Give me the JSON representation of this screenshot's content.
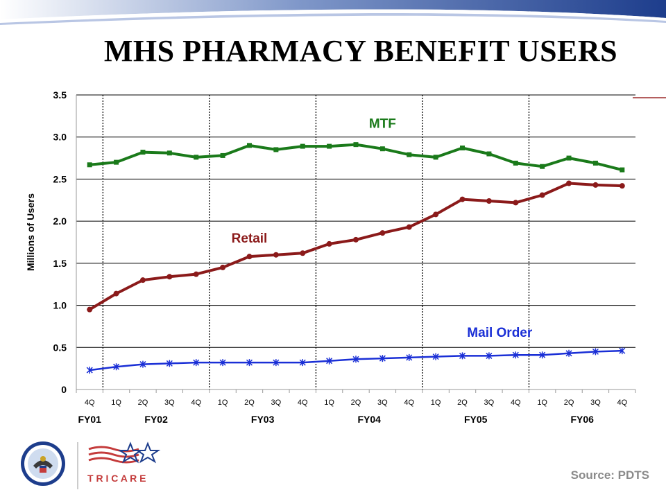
{
  "slide": {
    "title": "MHS PHARMACY BENEFIT USERS",
    "source": "Source: PDTS",
    "colors": {
      "banner_dark": "#1d3d8c",
      "banner_light": "#ffffff",
      "accent_line": "#9b2a2a",
      "source_text": "#8a8a8a"
    },
    "logos": [
      "department-of-defense-seal",
      "tricare-logo"
    ],
    "tricare_text": "T R I C A R E"
  },
  "chart_data": {
    "type": "line",
    "title": "",
    "ylabel": "Millions of Users",
    "ylim": [
      0,
      3.5
    ],
    "yticks": [
      "0",
      "0.5",
      "1.0",
      "1.5",
      "2.0",
      "2.5",
      "3.0",
      "3.5"
    ],
    "ytick_values": [
      0,
      0.5,
      1.0,
      1.5,
      2.0,
      2.5,
      3.0,
      3.5
    ],
    "grid": "horizontal",
    "categories": [
      "4Q",
      "1Q",
      "2Q",
      "3Q",
      "4Q",
      "1Q",
      "2Q",
      "3Q",
      "4Q",
      "1Q",
      "2Q",
      "3Q",
      "4Q",
      "1Q",
      "2Q",
      "3Q",
      "4Q",
      "1Q",
      "2Q",
      "3Q",
      "4Q"
    ],
    "fiscal_years": [
      {
        "label": "FY01",
        "start": 0,
        "end": 0
      },
      {
        "label": "FY02",
        "start": 1,
        "end": 4
      },
      {
        "label": "FY03",
        "start": 5,
        "end": 8
      },
      {
        "label": "FY04",
        "start": 9,
        "end": 12
      },
      {
        "label": "FY05",
        "start": 13,
        "end": 16
      },
      {
        "label": "FY06",
        "start": 17,
        "end": 20
      }
    ],
    "series": [
      {
        "name": "MTF",
        "color": "#1a7a1a",
        "marker": "square",
        "values": [
          2.67,
          2.7,
          2.82,
          2.81,
          2.76,
          2.78,
          2.9,
          2.85,
          2.89,
          2.89,
          2.91,
          2.86,
          2.79,
          2.76,
          2.87,
          2.8,
          2.69,
          2.65,
          2.75,
          2.69,
          2.61
        ]
      },
      {
        "name": "Retail",
        "color": "#8b1a1a",
        "marker": "circle",
        "values": [
          0.95,
          1.14,
          1.3,
          1.34,
          1.37,
          1.45,
          1.58,
          1.6,
          1.62,
          1.73,
          1.78,
          1.86,
          1.93,
          2.08,
          2.26,
          2.24,
          2.22,
          2.31,
          2.45,
          2.43,
          2.42
        ]
      },
      {
        "name": "Mail Order",
        "color": "#1a2fd6",
        "marker": "star",
        "values": [
          0.23,
          0.27,
          0.3,
          0.31,
          0.32,
          0.32,
          0.32,
          0.32,
          0.32,
          0.34,
          0.36,
          0.37,
          0.38,
          0.39,
          0.4,
          0.4,
          0.41,
          0.41,
          0.43,
          0.45,
          0.46
        ]
      }
    ]
  }
}
